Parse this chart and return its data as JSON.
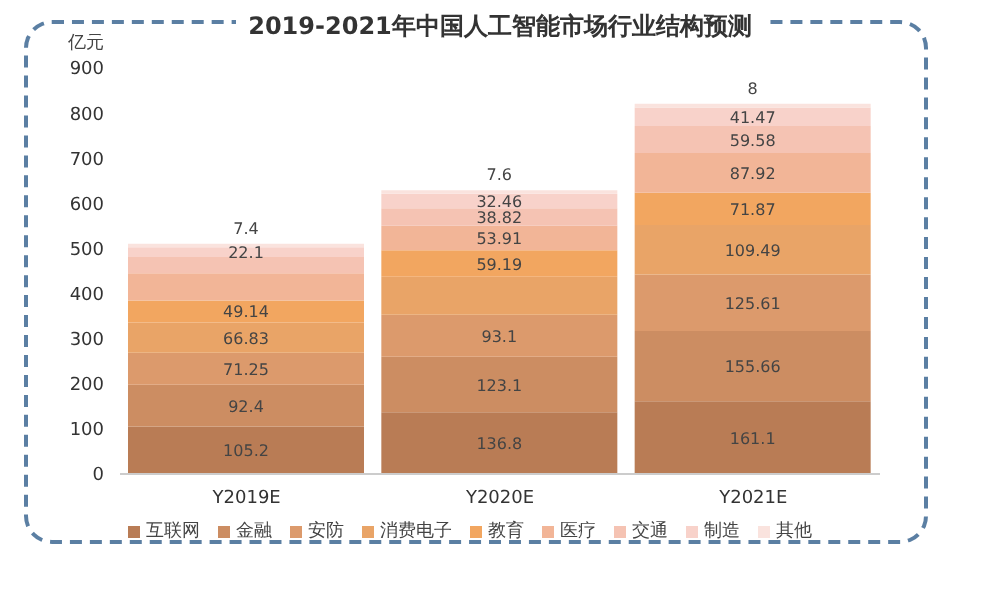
{
  "chart_data": {
    "type": "bar",
    "title": "2019-2021年中国人工智能市场行业结构预测",
    "ylabel": "亿元",
    "categories": [
      "Y2019E",
      "Y2020E",
      "Y2021E"
    ],
    "stacked": true,
    "ylim": [
      0,
      900
    ],
    "yticks": [
      0,
      100,
      200,
      300,
      400,
      500,
      600,
      700,
      800,
      900
    ],
    "grid": false,
    "legend": "bottom",
    "series": [
      {
        "name": "互联网",
        "color": "#b97c55",
        "values": [
          105.2,
          136.8,
          161.1
        ],
        "value_labels": [
          "105.2",
          "136.8",
          "161.1"
        ]
      },
      {
        "name": "金融",
        "color": "#cc8d62",
        "values": [
          92.4,
          123.1,
          155.66
        ],
        "value_labels": [
          "92.4",
          "123.1",
          "155.66"
        ]
      },
      {
        "name": "安防",
        "color": "#dc9a6c",
        "values": [
          71.25,
          93.1,
          125.61
        ],
        "value_labels": [
          "71.25",
          "93.1",
          "125.61"
        ]
      },
      {
        "name": "消费电子",
        "color": "#e9a467",
        "values": [
          66.83,
          84,
          109.49
        ],
        "value_labels": [
          "66.83",
          null,
          "109.49"
        ]
      },
      {
        "name": "教育",
        "color": "#f2a660",
        "values": [
          49.14,
          59.19,
          71.87
        ],
        "value_labels": [
          "49.14",
          "59.19",
          "71.87"
        ]
      },
      {
        "name": "医疗",
        "color": "#f2b597",
        "values": [
          60,
          53.91,
          87.92
        ],
        "value_labels": [
          null,
          "53.91",
          "87.92"
        ]
      },
      {
        "name": "交通",
        "color": "#f5c3b3",
        "values": [
          36,
          38.82,
          59.58
        ],
        "value_labels": [
          null,
          "38.82",
          "59.58"
        ]
      },
      {
        "name": "制造",
        "color": "#f8d2ca",
        "values": [
          22.1,
          32.46,
          41.47
        ],
        "value_labels": [
          "22.1",
          "32.46",
          "41.47"
        ]
      },
      {
        "name": "其他",
        "color": "#fae3de",
        "values": [
          7.4,
          7.6,
          8
        ],
        "value_labels": [
          "7.4",
          "7.6",
          "8"
        ]
      }
    ]
  }
}
